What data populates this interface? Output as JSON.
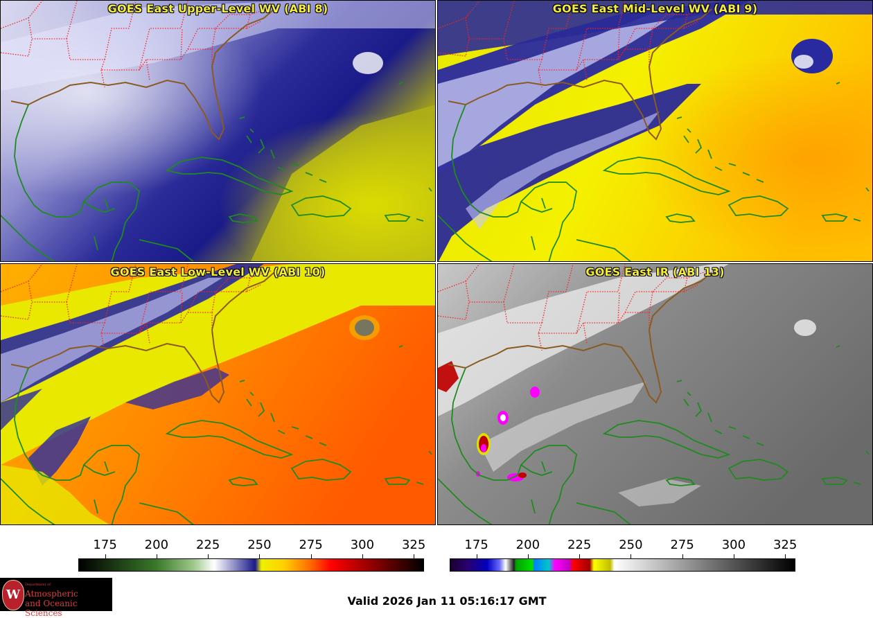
{
  "panels": [
    {
      "title": "GOES East Upper-Level WV (ABI 8)",
      "palette": "wv"
    },
    {
      "title": "GOES East Mid-Level WV (ABI 9)",
      "palette": "wv"
    },
    {
      "title": "GOES East Low-Level WV (ABI 10)",
      "palette": "wv"
    },
    {
      "title": "GOES East IR (ABI 13)",
      "palette": "ir"
    }
  ],
  "colorbars": {
    "wv": {
      "ticks": [
        "175",
        "200",
        "225",
        "250",
        "275",
        "300",
        "325"
      ],
      "range": [
        162,
        330
      ],
      "stops": [
        {
          "v": 162,
          "c": "#000000"
        },
        {
          "v": 200,
          "c": "#3a7a2a"
        },
        {
          "v": 218,
          "c": "#9fc88a"
        },
        {
          "v": 228,
          "c": "#ffffff"
        },
        {
          "v": 248,
          "c": "#1a1a8a"
        },
        {
          "v": 251,
          "c": "#f0f000"
        },
        {
          "v": 262,
          "c": "#ffd000"
        },
        {
          "v": 275,
          "c": "#ff6a00"
        },
        {
          "v": 285,
          "c": "#ff0000"
        },
        {
          "v": 305,
          "c": "#900000"
        },
        {
          "v": 330,
          "c": "#000000"
        }
      ]
    },
    "ir": {
      "ticks": [
        "175",
        "200",
        "225",
        "250",
        "275",
        "300",
        "325"
      ],
      "range": [
        162,
        330
      ],
      "stops": [
        {
          "v": 162,
          "c": "#1a0030"
        },
        {
          "v": 170,
          "c": "#2a006a"
        },
        {
          "v": 180,
          "c": "#0000c0"
        },
        {
          "v": 186,
          "c": "#6a6aff"
        },
        {
          "v": 189,
          "c": "#ffffff"
        },
        {
          "v": 193,
          "c": "#202020"
        },
        {
          "v": 194,
          "c": "#00a000"
        },
        {
          "v": 202,
          "c": "#00e000"
        },
        {
          "v": 203,
          "c": "#0080ff"
        },
        {
          "v": 210,
          "c": "#00c8c8"
        },
        {
          "v": 213,
          "c": "#ff00ff"
        },
        {
          "v": 220,
          "c": "#c000c0"
        },
        {
          "v": 222,
          "c": "#ff0000"
        },
        {
          "v": 230,
          "c": "#a00000"
        },
        {
          "v": 232,
          "c": "#ffff00"
        },
        {
          "v": 240,
          "c": "#c0c000"
        },
        {
          "v": 242,
          "c": "#ffffff"
        },
        {
          "v": 285,
          "c": "#808080"
        },
        {
          "v": 330,
          "c": "#000000"
        }
      ]
    }
  },
  "logo": {
    "dept": "Department of",
    "name_line1": "Atmospheric",
    "name_line2": "and Oceanic Sciences"
  },
  "valid_time": "Valid 2026 Jan 11 05:16:17 GMT",
  "colors": {
    "coastline": "#1f8a1f",
    "state_borders": "#ff2020",
    "us_coast": "#8a5a20",
    "title": "#f4ec3c"
  }
}
